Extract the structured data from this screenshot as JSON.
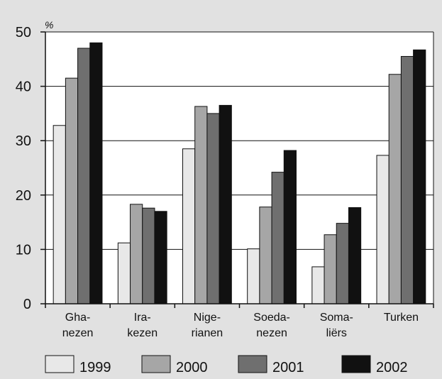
{
  "chart_data": {
    "type": "bar",
    "unit_label": "%",
    "title": "",
    "xlabel": "",
    "ylabel": "",
    "ylim": [
      0,
      50
    ],
    "yticks": [
      0,
      10,
      20,
      30,
      40,
      50
    ],
    "grid": true,
    "legend_position": "bottom",
    "categories": [
      [
        "Gha-",
        "nezen"
      ],
      [
        "Ira-",
        "kezen"
      ],
      [
        "Nige-",
        "rianen"
      ],
      [
        "Soeda-",
        "nezen"
      ],
      [
        "Soma-",
        "liërs"
      ],
      [
        "Turken"
      ]
    ],
    "series": [
      {
        "name": "1999",
        "color": "#e8e8e8",
        "values": [
          32.8,
          11.2,
          28.5,
          10.1,
          6.8,
          27.3
        ]
      },
      {
        "name": "2000",
        "color": "#a6a6a6",
        "values": [
          41.5,
          18.3,
          36.3,
          17.8,
          12.7,
          42.2
        ]
      },
      {
        "name": "2001",
        "color": "#6f6f6f",
        "values": [
          47.0,
          17.6,
          35.0,
          24.2,
          14.8,
          45.5
        ]
      },
      {
        "name": "2002",
        "color": "#111111",
        "values": [
          48.0,
          17.0,
          36.5,
          28.2,
          17.7,
          46.7
        ]
      }
    ]
  }
}
